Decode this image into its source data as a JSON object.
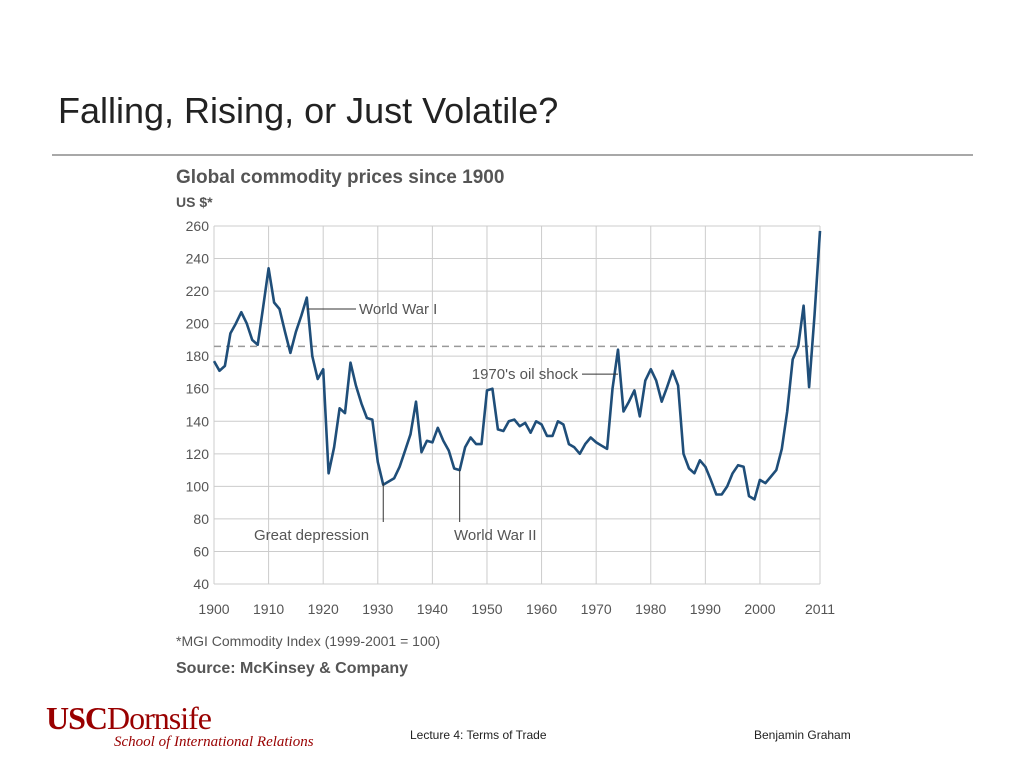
{
  "slide": {
    "title": "Falling, Rising, or Just Volatile?",
    "footer_lecture": "Lecture 4: Terms of Trade",
    "footer_author": "Benjamin Graham",
    "logo_usc": "USC",
    "logo_dornsife": "Dornsife",
    "logo_school": "School of International Relations"
  },
  "colors": {
    "line": "#1f4e79",
    "grid": "#cccccc",
    "axis_text": "#555555",
    "brand": "#990000"
  },
  "chart_data": {
    "type": "line",
    "title": "Global commodity prices since 1900",
    "ylabel": "US $*",
    "xlim": [
      1900,
      2011
    ],
    "ylim": [
      40,
      260
    ],
    "x_ticks": [
      1900,
      1910,
      1920,
      1930,
      1940,
      1950,
      1960,
      1970,
      1980,
      1990,
      2000,
      2011
    ],
    "y_ticks": [
      260,
      240,
      220,
      200,
      180,
      160,
      140,
      120,
      100,
      80,
      60,
      40
    ],
    "grid": true,
    "reference_line": {
      "y": 186,
      "style": "dashed"
    },
    "footnote": "*MGI Commodity Index (1999-2001 = 100)",
    "source": "Source: McKinsey & Company",
    "annotations": [
      {
        "text": "World War I",
        "x": 1917,
        "y": 209
      },
      {
        "text": "1970's oil shock",
        "x": 1974,
        "y": 169
      },
      {
        "text": "Great depression",
        "x": 1931,
        "y": 102
      },
      {
        "text": "World War II",
        "x": 1945,
        "y": 110
      }
    ],
    "series": [
      {
        "x": [
          1900,
          1901,
          1902,
          1903,
          1904,
          1905,
          1906,
          1907,
          1908,
          1909,
          1910,
          1911,
          1912,
          1913,
          1914,
          1915,
          1916,
          1917,
          1918,
          1919,
          1920,
          1921,
          1922,
          1923,
          1924,
          1925,
          1926,
          1927,
          1928,
          1929,
          1930,
          1931,
          1932,
          1933,
          1934,
          1935,
          1936,
          1937,
          1938,
          1939,
          1940,
          1941,
          1942,
          1943,
          1944,
          1945,
          1946,
          1947,
          1948,
          1949,
          1950,
          1951,
          1952,
          1953,
          1954,
          1955,
          1956,
          1957,
          1958,
          1959,
          1960,
          1961,
          1962,
          1963,
          1964,
          1965,
          1966,
          1967,
          1968,
          1969,
          1970,
          1971,
          1972,
          1973,
          1974,
          1975,
          1976,
          1977,
          1978,
          1979,
          1980,
          1981,
          1982,
          1983,
          1984,
          1985,
          1986,
          1987,
          1988,
          1989,
          1990,
          1991,
          1992,
          1993,
          1994,
          1995,
          1996,
          1997,
          1998,
          1999,
          2000,
          2001,
          2002,
          2003,
          2004,
          2005,
          2006,
          2007,
          2008,
          2009,
          2010,
          2011
        ],
        "values": [
          177,
          171,
          174,
          194,
          200,
          207,
          200,
          190,
          187,
          210,
          234,
          213,
          209,
          195,
          182,
          195,
          205,
          216,
          180,
          166,
          172,
          108,
          124,
          148,
          145,
          176,
          162,
          151,
          142,
          141,
          115,
          101,
          103,
          105,
          112,
          122,
          132,
          152,
          121,
          128,
          127,
          136,
          128,
          122,
          111,
          110,
          124,
          130,
          126,
          126,
          159,
          160,
          135,
          134,
          140,
          141,
          137,
          139,
          133,
          140,
          138,
          131,
          131,
          140,
          138,
          126,
          124,
          120,
          126,
          130,
          127,
          125,
          123,
          160,
          184,
          146,
          152,
          159,
          143,
          165,
          172,
          165,
          152,
          161,
          171,
          162,
          120,
          111,
          108,
          116,
          112,
          104,
          95,
          95,
          100,
          108,
          113,
          112,
          94,
          92,
          104,
          102,
          106,
          110,
          123,
          146,
          178,
          186,
          211,
          161,
          205,
          257
        ]
      }
    ]
  }
}
